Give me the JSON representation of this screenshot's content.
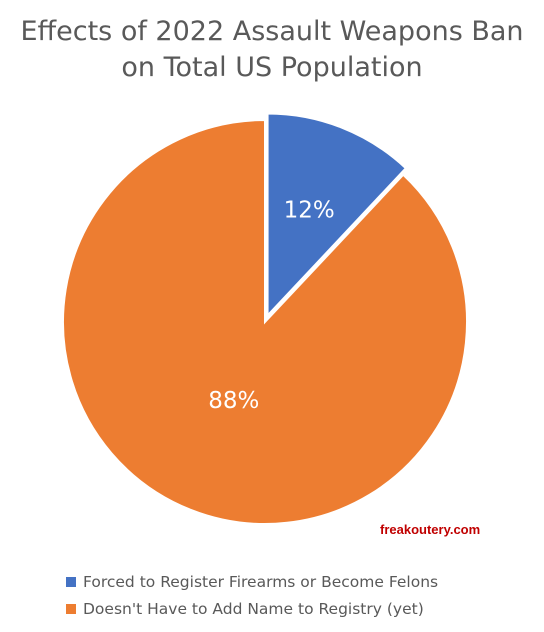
{
  "chart_data": {
    "type": "pie",
    "title_lines": [
      "Effects of 2022 Assault Weapons Ban",
      "on Total US Population"
    ],
    "slices": [
      {
        "label": "Forced to Register Firearms or Become Felons",
        "value": 12,
        "display": "12%",
        "color": "#4472c4",
        "exploded": true
      },
      {
        "label": "Doesn't Have to Add Name to Registry (yet)",
        "value": 88,
        "display": "88%",
        "color": "#ed7d31",
        "exploded": false
      }
    ],
    "start_angle": "12 o'clock",
    "direction": "clockwise",
    "legend_position": "bottom-left"
  },
  "watermark": "freakoutery.com"
}
